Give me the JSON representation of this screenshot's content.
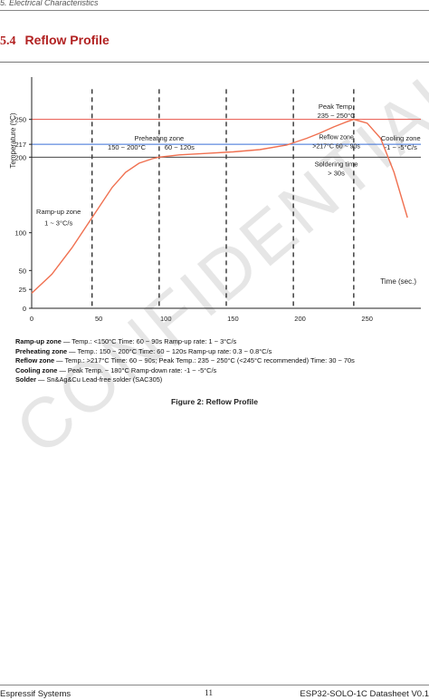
{
  "header": {
    "running_title": "5. Electrical Characteristics"
  },
  "section": {
    "number": "5.4",
    "title": "Reflow Profile"
  },
  "chart_data": {
    "type": "line",
    "ylabel": "Temperature (ºC)",
    "xlabel": "Time (sec.)",
    "y_ticks": [
      "0",
      "25",
      "50",
      "100",
      "200",
      "217",
      "250"
    ],
    "x_ticks": [
      "0",
      "50",
      "100",
      "150",
      "200",
      "250"
    ],
    "ylim": [
      0,
      300
    ],
    "xlim": [
      0,
      290
    ],
    "reference_lines": [
      {
        "label": "250",
        "value": 250,
        "color": "#e8544a"
      },
      {
        "label": "217",
        "value": 217,
        "color": "#3a6fd8"
      },
      {
        "label": "200",
        "value": 200,
        "color": "#444444"
      }
    ],
    "zone_boundaries_sec": [
      45,
      95,
      145,
      195,
      240
    ],
    "series": [
      {
        "color": "#f07050",
        "x": [
          0,
          15,
          30,
          45,
          60,
          70,
          80,
          90,
          95,
          110,
          130,
          150,
          170,
          190,
          205,
          215,
          225,
          235,
          240,
          250,
          260,
          270,
          280
        ],
        "y": [
          20,
          45,
          80,
          120,
          160,
          180,
          192,
          198,
          200,
          203,
          205,
          207,
          210,
          216,
          225,
          232,
          240,
          247,
          250,
          245,
          225,
          180,
          120
        ]
      }
    ],
    "annotations": {
      "rampup": [
        "Ramp-up zone",
        "1 ~ 3°C/s"
      ],
      "preheat": [
        "Preheating zone",
        "150 ~ 200°C",
        "60 ~ 120s"
      ],
      "peak": [
        "Peak Temp.",
        "235 ~ 250°C"
      ],
      "reflow": [
        "Reflow zone",
        ">217°C  60 ~ 90s"
      ],
      "solder": [
        "Soldering time",
        "> 30s"
      ],
      "cooling": [
        "Cooling zone",
        "-1 ~ -5°C/s"
      ]
    }
  },
  "notes": [
    {
      "term": "Ramp-up zone",
      "text": " — Temp.: <150°C  Time: 60 ~ 90s  Ramp-up rate: 1 ~ 3°C/s"
    },
    {
      "term": "Preheating zone",
      "text": " — Temp.: 150 ~ 200°C  Time: 60 ~ 120s  Ramp-up rate: 0.3 ~ 0.8°C/s"
    },
    {
      "term": "Reflow zone",
      "text": " — Temp.: >217°C  Time: 60 ~ 90s; Peak Temp.: 235 ~ 250°C (<245°C recommended)  Time: 30 ~ 70s"
    },
    {
      "term": "Cooling zone",
      "text": " — Peak Temp. ~ 180°C  Ramp-down rate: -1 ~ -5°C/s"
    },
    {
      "term": "Solder",
      "text": " — Sn&Ag&Cu Lead-free solder (SAC305)"
    }
  ],
  "caption": "Figure 2: Reflow Profile",
  "watermark": "CONFIDENTIAL",
  "footer": {
    "left": "Espressif Systems",
    "page": "11",
    "right": "ESP32-SOLO-1C Datasheet V0.1"
  }
}
